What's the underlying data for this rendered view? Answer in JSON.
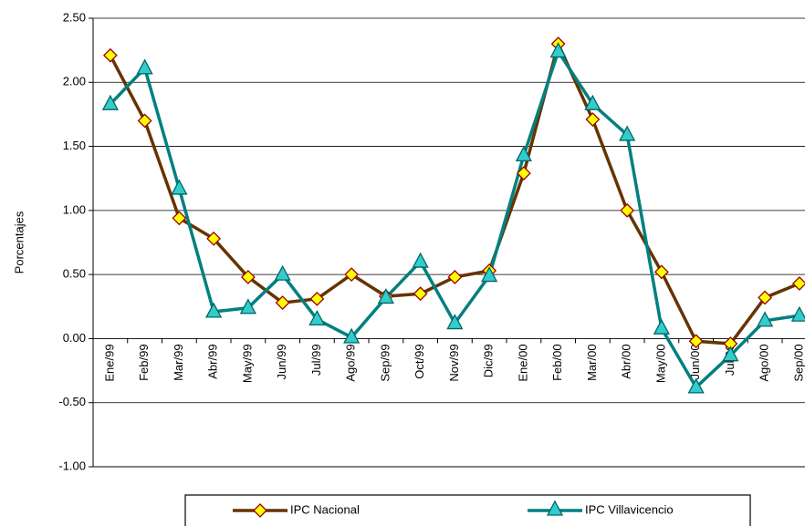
{
  "chart_data": {
    "type": "line",
    "y_label": "Porcentajes",
    "categories": [
      "Ene/99",
      "Feb/99",
      "Mar/99",
      "Abr/99",
      "May/99",
      "Jun/99",
      "Jul/99",
      "Ago/99",
      "Sep/99",
      "Oct/99",
      "Nov/99",
      "Dic/99",
      "Ene/00",
      "Feb/00",
      "Mar/00",
      "Abr/00",
      "May/00",
      "Jun/00",
      "Jul/00",
      "Ago/00",
      "Sep/00"
    ],
    "series": [
      {
        "name": "IPC Nacional",
        "color": "#663300",
        "values": [
          2.21,
          1.7,
          0.94,
          0.78,
          0.48,
          0.28,
          0.31,
          0.5,
          0.33,
          0.35,
          0.48,
          0.53,
          1.29,
          2.3,
          1.71,
          1.0,
          0.52,
          -0.02,
          -0.04,
          0.32,
          0.43
        ]
      },
      {
        "name": "IPC Villavicencio",
        "color": "#008080",
        "values": [
          1.83,
          2.11,
          1.17,
          0.21,
          0.24,
          0.5,
          0.15,
          0.01,
          0.32,
          0.6,
          0.12,
          0.49,
          1.43,
          2.24,
          1.83,
          1.59,
          0.08,
          -0.38,
          -0.13,
          0.14,
          0.18
        ]
      }
    ],
    "ylim": [
      -1.0,
      2.5
    ],
    "yticks": [
      {
        "value": 2.5,
        "label": "2.50"
      },
      {
        "value": 2.0,
        "label": "2.00"
      },
      {
        "value": 1.5,
        "label": "1.50"
      },
      {
        "value": 1.0,
        "label": "1.00"
      },
      {
        "value": 0.5,
        "label": "0.50"
      },
      {
        "value": 0.0,
        "label": "0.00"
      },
      {
        "value": -0.5,
        "label": "-0.50"
      },
      {
        "value": -1.0,
        "label": "-1.00"
      }
    ],
    "grid": true
  }
}
